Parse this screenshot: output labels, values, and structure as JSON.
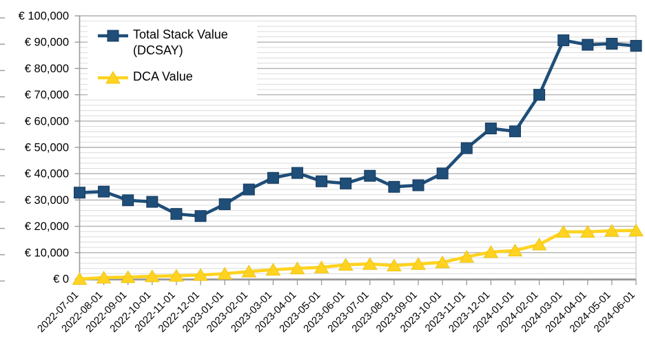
{
  "legend": {
    "items": [
      {
        "line1": "Total Stack Value",
        "line2": "(DCSAY)"
      },
      {
        "line1": "DCA Value",
        "line2": ""
      }
    ]
  },
  "chart_data": {
    "type": "line",
    "title": "",
    "xlabel": "",
    "ylabel": "",
    "categories": [
      "2022-07-01",
      "2022-08-01",
      "2022-09-01",
      "2022-10-01",
      "2022-11-01",
      "2022-12-01",
      "2023-01-01",
      "2023-02-01",
      "2023-03-01",
      "2023-04-01",
      "2023-05-01",
      "2023-06-01",
      "2023-07-01",
      "2023-08-01",
      "2023-09-01",
      "2023-10-01",
      "2023-11-01",
      "2023-12-01",
      "2024-01-01",
      "2024-02-01",
      "2024-03-01",
      "2024-04-01",
      "2024-05-01",
      "2024-06-01"
    ],
    "series": [
      {
        "name": "Total Stack Value (DCSAY)",
        "marker": "square",
        "color": "#1F4E79",
        "marker_edge": "#16395C",
        "values": [
          32800,
          33200,
          29900,
          29300,
          24700,
          23900,
          28400,
          34000,
          38400,
          40300,
          37100,
          36300,
          39200,
          35000,
          35600,
          40100,
          49700,
          57200,
          56100,
          70000,
          90700,
          89000,
          89400,
          88600
        ]
      },
      {
        "name": "DCA Value",
        "marker": "triangle",
        "color": "#FFD320",
        "marker_edge": "#EDC417",
        "values": [
          0,
          500,
          700,
          1000,
          1200,
          1500,
          2000,
          2800,
          3500,
          4000,
          4400,
          5400,
          5700,
          5100,
          5700,
          6300,
          8400,
          10200,
          10800,
          13100,
          17900,
          17900,
          18300,
          18400
        ]
      }
    ],
    "y_axis": {
      "min": 0,
      "max": 100000,
      "major_step": 10000,
      "minor_step": 2000,
      "tick_labels": [
        "€ 0",
        "€ 10,000",
        "€ 20,000",
        "€ 30,000",
        "€ 40,000",
        "€ 50,000",
        "€ 60,000",
        "€ 70,000",
        "€ 80,000",
        "€ 90,000",
        "€ 100,000"
      ]
    },
    "legend_position": "top-left",
    "grid": "major+minor"
  },
  "colors": {
    "series_blue": "#1F4E79",
    "series_yellow": "#FFD320",
    "grid_minor": "#DBDBDB",
    "grid_major": "#B1B1B1",
    "axis": "#999999",
    "plot_right_border": "#C6C6C6",
    "text": "#000000",
    "background": "#FFFFFF"
  }
}
